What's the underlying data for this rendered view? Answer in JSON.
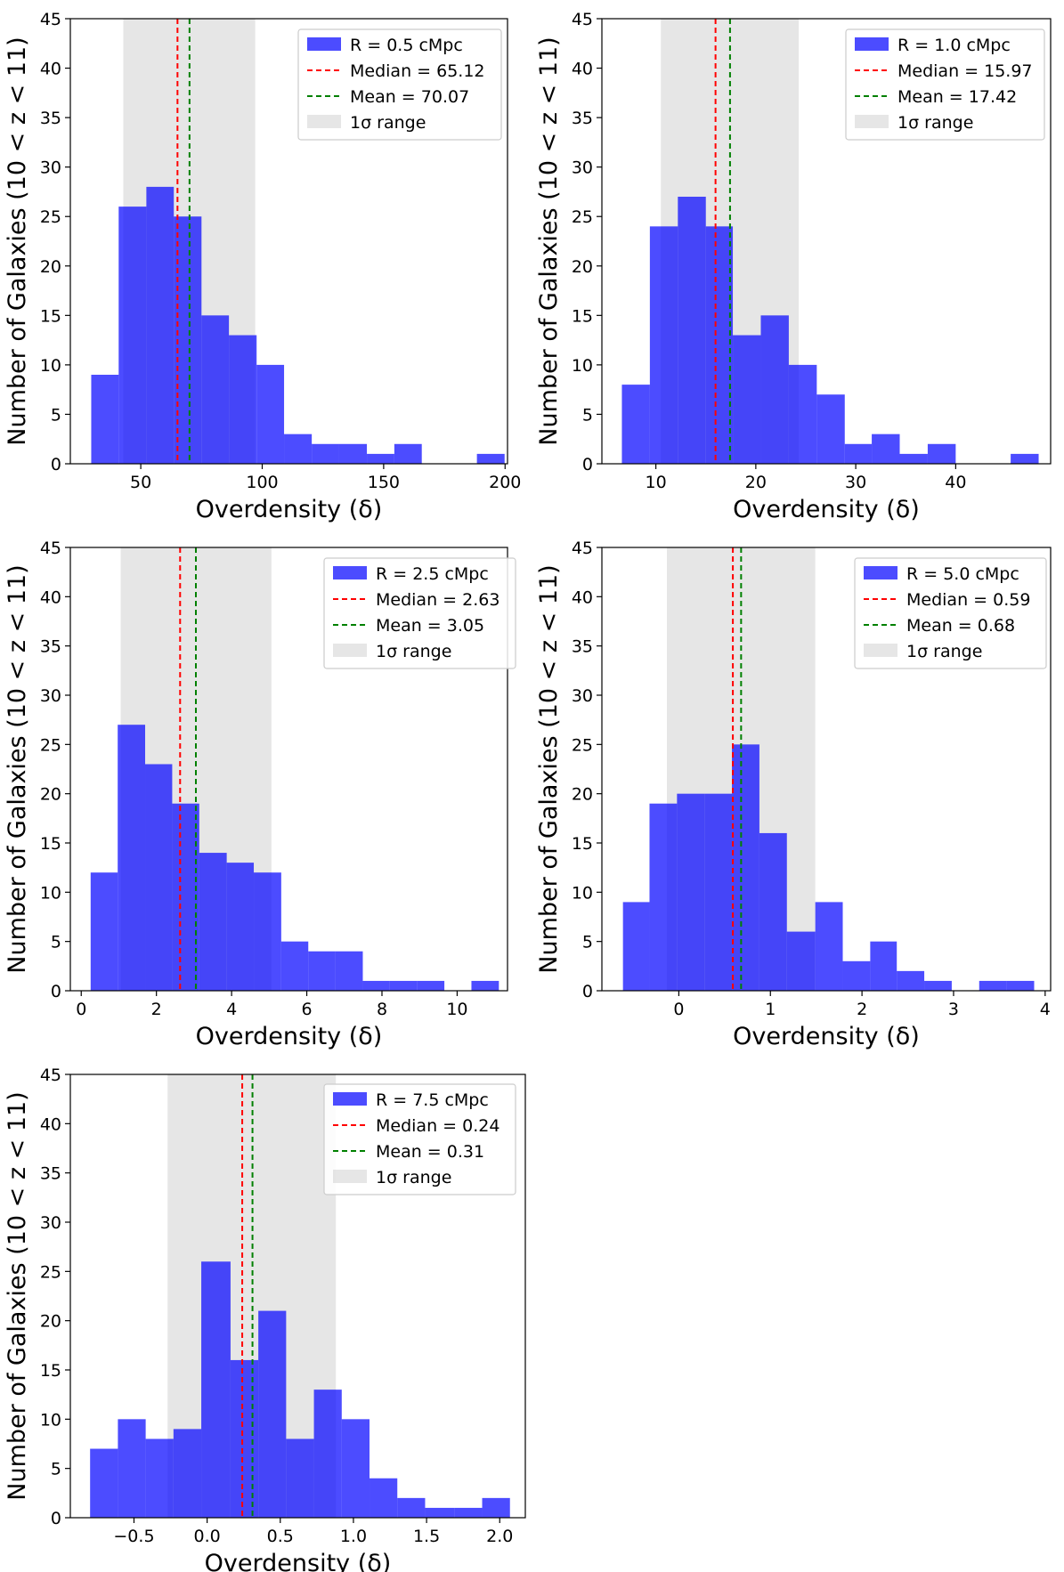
{
  "figure": {
    "panel_count": 5,
    "colors": {
      "hist": "#0000ff",
      "median": "#ff0000",
      "mean": "#008000",
      "sigma_band": "#b0b0b0",
      "axes": "#000000",
      "legend_border": "#cccccc"
    }
  },
  "chart_data": [
    {
      "type": "bar",
      "panel": "R = 0.5 cMpc",
      "xlabel": "Overdensity (δ)",
      "ylabel": "Number of Galaxies (10 < z < 11)",
      "xlim": [
        21,
        201
      ],
      "ylim": [
        0,
        45
      ],
      "xticks": [
        50,
        100,
        150,
        200
      ],
      "xtick_labels": [
        "50",
        "100",
        "150",
        "200"
      ],
      "yticks": [
        0,
        5,
        10,
        15,
        20,
        25,
        30,
        35,
        40,
        45
      ],
      "ytick_labels": [
        "0",
        "5",
        "10",
        "15",
        "20",
        "25",
        "30",
        "35",
        "40",
        "45"
      ],
      "bin_edges": [
        29.6,
        40.9,
        52.3,
        63.6,
        75.0,
        86.3,
        97.7,
        109.0,
        120.4,
        131.7,
        143.1,
        154.4,
        165.7,
        177.1,
        188.4,
        199.8
      ],
      "counts": [
        9,
        26,
        28,
        25,
        15,
        13,
        10,
        3,
        2,
        2,
        1,
        2,
        0,
        0,
        1
      ],
      "median": 65.12,
      "mean": 70.07,
      "sigma_range": [
        42.8,
        97.1
      ],
      "legend": {
        "hist": "R = 0.5 cMpc",
        "median": "Median = 65.12",
        "mean": "Mean = 70.07",
        "sigma": "1σ range"
      }
    },
    {
      "type": "bar",
      "panel": "R = 1.0 cMpc",
      "xlabel": "Overdensity (δ)",
      "ylabel": "Number of Galaxies (10 < z < 11)",
      "xlim": [
        4.6,
        49.5
      ],
      "ylim": [
        0,
        45
      ],
      "xticks": [
        10,
        20,
        30,
        40
      ],
      "xtick_labels": [
        "10",
        "20",
        "30",
        "40"
      ],
      "yticks": [
        0,
        5,
        10,
        15,
        20,
        25,
        30,
        35,
        40,
        45
      ],
      "ytick_labels": [
        "0",
        "5",
        "10",
        "15",
        "20",
        "25",
        "30",
        "35",
        "40",
        "45"
      ],
      "bin_edges": [
        6.6,
        9.4,
        12.2,
        15.0,
        17.7,
        20.5,
        23.3,
        26.1,
        28.9,
        31.6,
        34.4,
        37.2,
        40.0,
        42.8,
        45.5,
        48.3
      ],
      "counts": [
        8,
        24,
        27,
        24,
        13,
        15,
        10,
        7,
        2,
        3,
        1,
        2,
        0,
        0,
        1
      ],
      "median": 15.97,
      "mean": 17.42,
      "sigma_range": [
        10.5,
        24.3
      ],
      "legend": {
        "hist": "R = 1.0 cMpc",
        "median": "Median = 15.97",
        "mean": "Mean = 17.42",
        "sigma": "1σ range"
      }
    },
    {
      "type": "bar",
      "panel": "R = 2.5 cMpc",
      "xlabel": "Overdensity (δ)",
      "ylabel": "Number of Galaxies (10 < z < 11)",
      "xlim": [
        -0.29,
        11.34
      ],
      "ylim": [
        0,
        45
      ],
      "xticks": [
        0,
        2,
        4,
        6,
        8,
        10
      ],
      "xtick_labels": [
        "0",
        "2",
        "4",
        "6",
        "8",
        "10"
      ],
      "yticks": [
        0,
        5,
        10,
        15,
        20,
        25,
        30,
        35,
        40,
        45
      ],
      "ytick_labels": [
        "0",
        "5",
        "10",
        "15",
        "20",
        "25",
        "30",
        "35",
        "40",
        "45"
      ],
      "bin_edges": [
        0.25,
        0.97,
        1.7,
        2.42,
        3.14,
        3.87,
        4.59,
        5.32,
        6.04,
        6.76,
        7.49,
        8.21,
        8.93,
        9.66,
        10.38,
        11.11
      ],
      "counts": [
        12,
        27,
        23,
        19,
        14,
        13,
        12,
        5,
        4,
        4,
        1,
        1,
        1,
        0,
        1
      ],
      "median": 2.63,
      "mean": 3.05,
      "sigma_range": [
        1.05,
        5.06
      ],
      "legend": {
        "hist": "R = 2.5 cMpc",
        "median": "Median = 2.63",
        "mean": "Mean = 3.05",
        "sigma": "1σ range"
      }
    },
    {
      "type": "bar",
      "panel": "R = 5.0 cMpc",
      "xlabel": "Overdensity (δ)",
      "ylabel": "Number of Galaxies (10 < z < 11)",
      "xlim": [
        -0.84,
        4.06
      ],
      "ylim": [
        0,
        45
      ],
      "xticks": [
        0,
        1,
        2,
        3,
        4
      ],
      "xtick_labels": [
        "0",
        "1",
        "2",
        "3",
        "4"
      ],
      "yticks": [
        0,
        5,
        10,
        15,
        20,
        25,
        30,
        35,
        40,
        45
      ],
      "ytick_labels": [
        "0",
        "5",
        "10",
        "15",
        "20",
        "25",
        "30",
        "35",
        "40",
        "45"
      ],
      "bin_edges": [
        -0.61,
        -0.32,
        -0.02,
        0.28,
        0.58,
        0.88,
        1.18,
        1.49,
        1.79,
        2.09,
        2.38,
        2.68,
        2.98,
        3.28,
        3.58,
        3.88
      ],
      "counts": [
        9,
        19,
        20,
        20,
        25,
        16,
        6,
        9,
        3,
        5,
        2,
        1,
        0,
        1,
        1
      ],
      "median": 0.59,
      "mean": 0.68,
      "sigma_range": [
        -0.13,
        1.49
      ],
      "legend": {
        "hist": "R = 5.0 cMpc",
        "median": "Median = 0.59",
        "mean": "Mean = 0.68",
        "sigma": "1σ range"
      }
    },
    {
      "type": "bar",
      "panel": "R = 7.5 cMpc",
      "xlabel": "Overdensity (δ)",
      "ylabel": "Number of Galaxies (10 < z < 11)",
      "xlim": [
        -0.935,
        2.175
      ],
      "ylim": [
        0,
        45
      ],
      "xticks": [
        -0.5,
        0.0,
        0.5,
        1.0,
        1.5,
        2.0
      ],
      "xtick_labels": [
        "−0.5",
        "0.0",
        "0.5",
        "1.0",
        "1.5",
        "2.0"
      ],
      "yticks": [
        0,
        5,
        10,
        15,
        20,
        25,
        30,
        35,
        40,
        45
      ],
      "ytick_labels": [
        "0",
        "5",
        "10",
        "15",
        "20",
        "25",
        "30",
        "35",
        "40",
        "45"
      ],
      "bin_edges": [
        -0.8,
        -0.61,
        -0.42,
        -0.23,
        -0.04,
        0.16,
        0.35,
        0.54,
        0.73,
        0.92,
        1.11,
        1.3,
        1.49,
        1.69,
        1.88,
        2.07
      ],
      "counts": [
        7,
        10,
        8,
        9,
        26,
        16,
        21,
        8,
        13,
        10,
        4,
        2,
        1,
        1,
        2
      ],
      "median": 0.24,
      "mean": 0.31,
      "sigma_range": [
        -0.27,
        0.88
      ],
      "legend": {
        "hist": "R = 7.5 cMpc",
        "median": "Median = 0.24",
        "mean": "Mean = 0.31",
        "sigma": "1σ range"
      }
    }
  ]
}
